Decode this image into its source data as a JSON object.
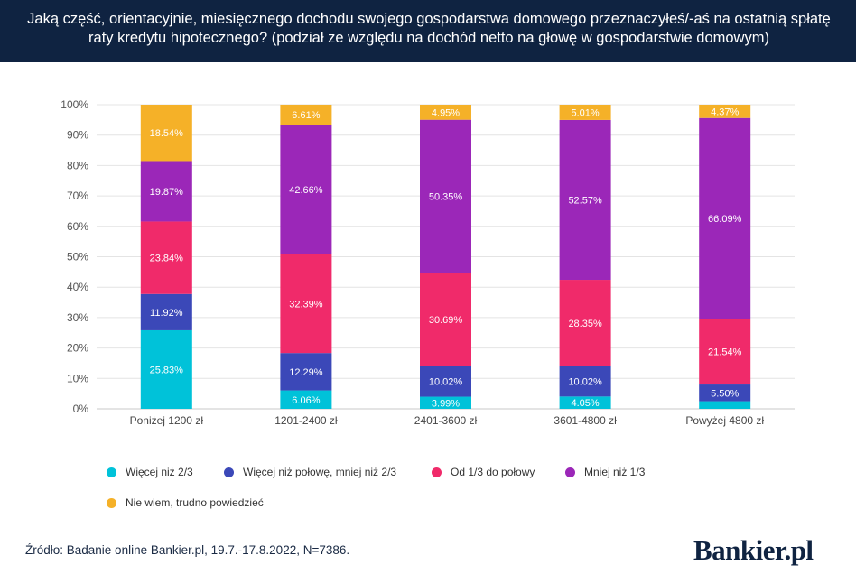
{
  "header": {
    "title": "Jaką część, orientacyjnie, miesięcznego dochodu swojego gospodarstwa domowego przeznaczyłeś/-aś na ostatnią spłatę raty kredytu hipotecznego?  (podział ze względu na dochód netto na głowę w gospodarstwie domowym)"
  },
  "colors": {
    "header_bg": "#0f2341",
    "series": [
      "#00c2d9",
      "#3b48b8",
      "#f02a6a",
      "#9b27b8",
      "#f5b128"
    ]
  },
  "chart_data": {
    "type": "bar",
    "stacked": true,
    "categories": [
      "Poniżej 1200 zł",
      "1201-2400 zł",
      "2401-3600 zł",
      "3601-4800 zł",
      "Powyżej 4800 zł"
    ],
    "series": [
      {
        "name": "Więcej niż 2/3",
        "values": [
          25.83,
          6.06,
          3.99,
          4.05,
          2.5
        ],
        "labels": [
          "25.83%",
          "6.06%",
          "3.99%",
          "4.05%",
          ""
        ]
      },
      {
        "name": "Więcej niż połowę, mniej niż 2/3",
        "values": [
          11.92,
          12.29,
          10.02,
          10.02,
          5.5
        ],
        "labels": [
          "11.92%",
          "12.29%",
          "10.02%",
          "10.02%",
          "5.50%"
        ]
      },
      {
        "name": "Od 1/3 do połowy",
        "values": [
          23.84,
          32.39,
          30.69,
          28.35,
          21.54
        ],
        "labels": [
          "23.84%",
          "32.39%",
          "30.69%",
          "28.35%",
          "21.54%"
        ]
      },
      {
        "name": "Mniej niż 1/3",
        "values": [
          19.87,
          42.66,
          50.35,
          52.57,
          66.09
        ],
        "labels": [
          "19.87%",
          "42.66%",
          "50.35%",
          "52.57%",
          "66.09%"
        ]
      },
      {
        "name": "Nie wiem, trudno powiedzieć",
        "values": [
          18.54,
          6.61,
          4.95,
          5.01,
          4.37
        ],
        "labels": [
          "18.54%",
          "6.61%",
          "4.95%",
          "5.01%",
          "4.37%"
        ]
      }
    ],
    "y_ticks": [
      "0%",
      "10%",
      "20%",
      "30%",
      "40%",
      "50%",
      "60%",
      "70%",
      "80%",
      "90%",
      "100%"
    ],
    "ylim": [
      0,
      100
    ],
    "grid": true,
    "legend_position": "bottom"
  },
  "footer": {
    "source": "Źródło: Badanie online Bankier.pl, 19.7.-17.8.2022, N=7386.",
    "logo": "Bankier.pl"
  }
}
